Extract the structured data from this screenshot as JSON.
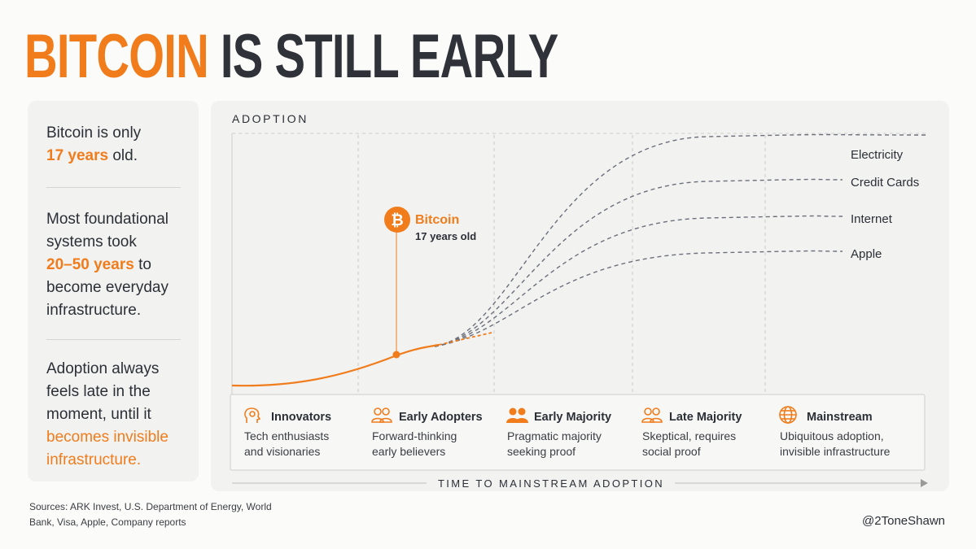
{
  "title": {
    "part1": "BITCOIN",
    "part2": "IS STILL EARLY"
  },
  "left_panel": {
    "block1": {
      "pre": "Bitcoin is only",
      "highlight": "17 years",
      "post": "old."
    },
    "block2": {
      "pre": "Most foundational systems took",
      "highlight": "20–50 years",
      "post": "to become everyday infrastructure."
    },
    "block3": {
      "pre": "Adoption always feels late in the moment, until it",
      "highlight": "becomes invisible infrastructure."
    }
  },
  "chart_data": {
    "type": "line",
    "ylabel": "ADOPTION",
    "xlabel": "TIME TO MAINSTREAM ADOPTION",
    "colors": {
      "bitcoin": "#f07c1c",
      "benchmarks": "#6b6f7a"
    },
    "marker": {
      "label": "Bitcoin",
      "sublabel": "17 years old",
      "icon": "bitcoin-icon"
    },
    "series": [
      {
        "name": "Electricity"
      },
      {
        "name": "Credit Cards"
      },
      {
        "name": "Internet"
      },
      {
        "name": "Apple"
      }
    ],
    "stages": [
      {
        "name": "Innovators",
        "desc": "Tech enthusiasts and visionaries",
        "icon": "lightbulb-head-icon"
      },
      {
        "name": "Early Adopters",
        "desc": "Forward-thinking early believers",
        "icon": "people-outline-icon"
      },
      {
        "name": "Early Majority",
        "desc": "Pragmatic majority seeking proof",
        "icon": "people-filled-icon"
      },
      {
        "name": "Late Majority",
        "desc": "Skeptical, requires social proof",
        "icon": "people-outline-icon"
      },
      {
        "name": "Mainstream",
        "desc": "Ubiquitous adoption, invisible infrastructure",
        "icon": "globe-icon"
      }
    ]
  },
  "footer": {
    "sources": "Sources: ARK Invest, U.S. Department of Energy, World Bank, Visa, Apple, Company reports",
    "handle": "@2ToneShawn"
  }
}
